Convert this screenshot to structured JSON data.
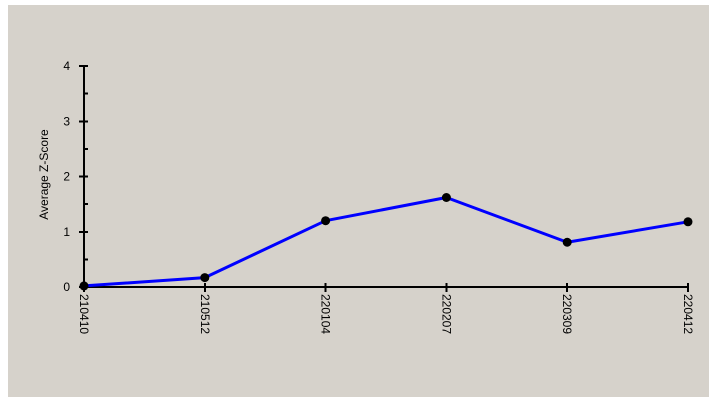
{
  "chart_data": {
    "type": "line",
    "title": "",
    "xlabel": "",
    "ylabel": "Average Z-Score",
    "categories": [
      "210410",
      "210512",
      "220104",
      "220207",
      "220309",
      "220412"
    ],
    "series": [
      {
        "values": [
          0.02,
          0.17,
          1.2,
          1.62,
          0.81,
          1.18
        ],
        "color": "#0000ff"
      }
    ],
    "ylim": [
      0,
      4
    ],
    "yticks": [
      0,
      1,
      2,
      3,
      4
    ],
    "ytick_labels": [
      "0",
      "1",
      "2",
      "3",
      "4"
    ],
    "grid": false,
    "legend": "none",
    "background_color": "#d6d2cb"
  }
}
